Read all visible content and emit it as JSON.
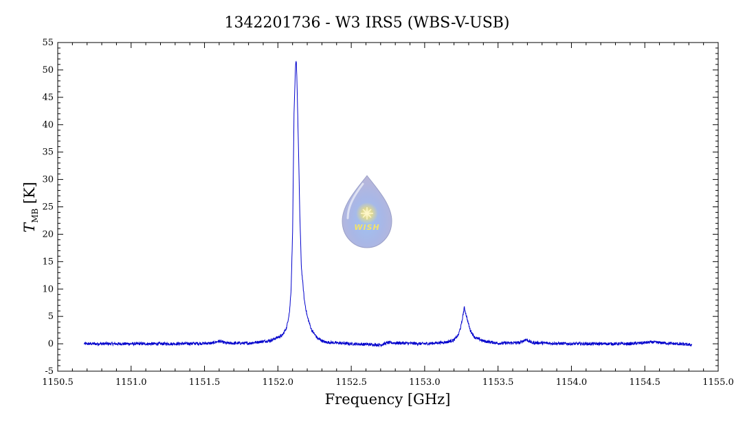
{
  "chart_data": {
    "type": "line",
    "title": "1342201736 - W3 IRS5 (WBS-V-USB)",
    "xlabel": "Frequency [GHz]",
    "ylabel_main": "T",
    "ylabel_sub": "MB",
    "ylabel_unit": "[K]",
    "xlim": [
      1150.5,
      1155.0
    ],
    "ylim": [
      -5,
      55
    ],
    "grid": false,
    "x_ticks": [
      "1150.5",
      "1151.0",
      "1151.5",
      "1152.0",
      "1152.5",
      "1153.0",
      "1153.5",
      "1154.0",
      "1154.5",
      "1155.0"
    ],
    "y_ticks": [
      "-5",
      "0",
      "5",
      "10",
      "15",
      "20",
      "25",
      "30",
      "35",
      "40",
      "45",
      "50",
      "55"
    ],
    "series": [
      {
        "color": "#0000cc",
        "x": [
          1150.68,
          1151.0,
          1151.3,
          1151.55,
          1151.6,
          1151.65,
          1151.8,
          1151.95,
          1152.0,
          1152.03,
          1152.06,
          1152.08,
          1152.09,
          1152.1,
          1152.11,
          1152.12,
          1152.125,
          1152.13,
          1152.14,
          1152.15,
          1152.16,
          1152.18,
          1152.2,
          1152.23,
          1152.27,
          1152.32,
          1152.5,
          1152.7,
          1152.75,
          1153.0,
          1153.15,
          1153.2,
          1153.23,
          1153.25,
          1153.27,
          1153.29,
          1153.31,
          1153.34,
          1153.4,
          1153.5,
          1153.65,
          1153.69,
          1153.73,
          1154.0,
          1154.4,
          1154.55,
          1154.82
        ],
        "y": [
          0.0,
          0.0,
          0.0,
          0.1,
          0.5,
          0.1,
          0.1,
          0.6,
          1.2,
          1.5,
          3.0,
          6.0,
          10.0,
          20.0,
          42.0,
          50.5,
          52.0,
          48.0,
          36.0,
          23.0,
          14.0,
          8.0,
          5.0,
          2.5,
          1.0,
          0.3,
          0.0,
          -0.2,
          0.2,
          0.0,
          0.3,
          0.7,
          1.6,
          3.5,
          6.6,
          4.5,
          2.5,
          1.2,
          0.5,
          0.1,
          0.2,
          0.8,
          0.2,
          0.0,
          0.0,
          0.3,
          -0.2
        ]
      }
    ]
  },
  "logo": {
    "label": "WISH"
  }
}
